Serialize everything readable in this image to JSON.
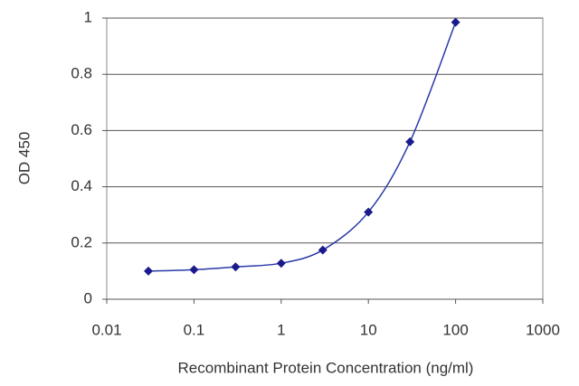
{
  "chart_data": {
    "type": "line",
    "xlabel": "Recombinant Protein Concentration (ng/ml)",
    "ylabel": "OD 450",
    "x": [
      0.03,
      0.1,
      0.3,
      1,
      3,
      10,
      30,
      100
    ],
    "series": [
      {
        "color": "#2a3aa8",
        "values": [
          0.1,
          0.105,
          0.115,
          0.128,
          0.175,
          0.31,
          0.56,
          0.985
        ]
      }
    ],
    "xscale": "log",
    "xlim": [
      0.01,
      1000
    ],
    "xticks": [
      0.01,
      0.1,
      1,
      10,
      100,
      1000
    ],
    "ylim": [
      0,
      1
    ],
    "yticks": [
      0,
      0.2,
      0.4,
      0.6,
      0.8,
      1
    ],
    "grid": true
  }
}
